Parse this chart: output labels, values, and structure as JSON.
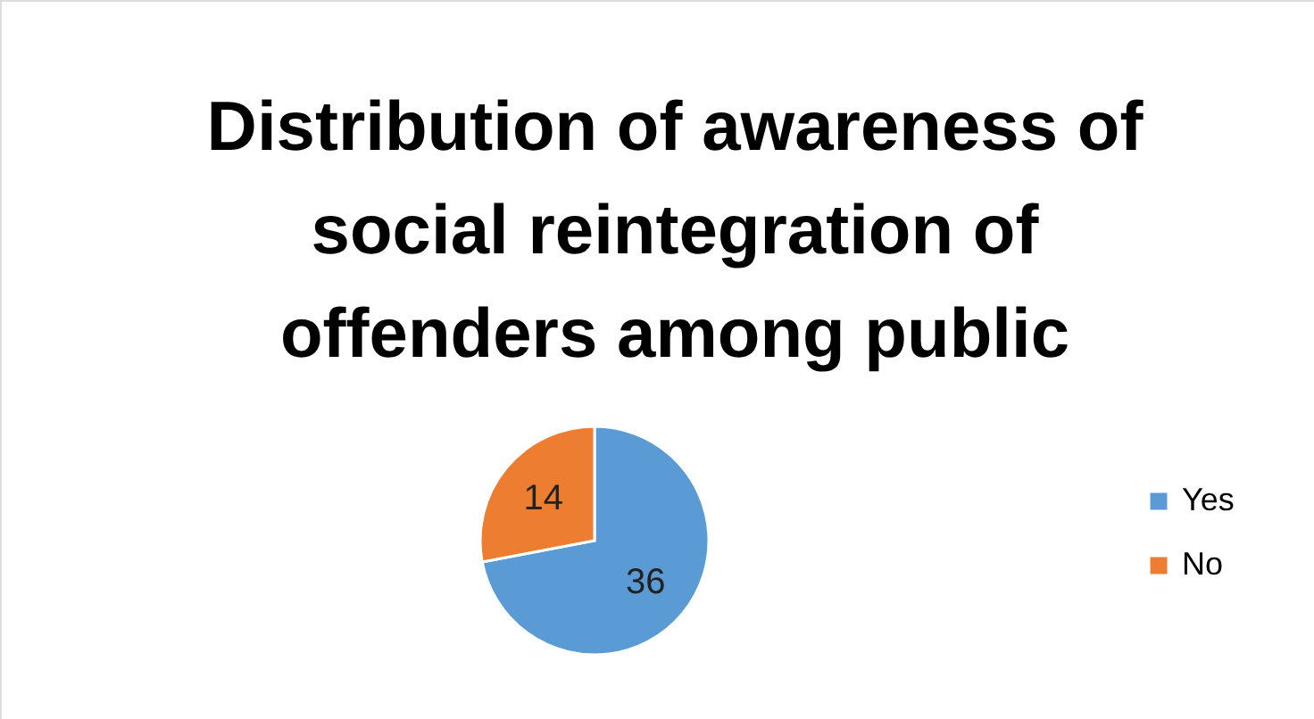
{
  "chart_data": {
    "type": "pie",
    "title": "Distribution of awareness of social reintegration of offenders among public",
    "categories": [
      "Yes",
      "No"
    ],
    "values": [
      36,
      14
    ],
    "colors": [
      "#5b9bd5",
      "#ed7d31"
    ],
    "data_labels": true,
    "legend": "right"
  }
}
